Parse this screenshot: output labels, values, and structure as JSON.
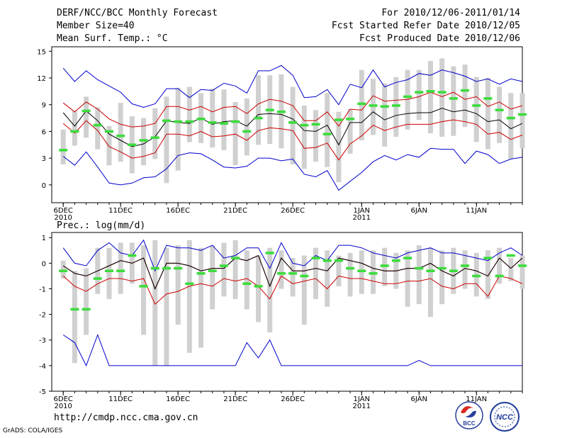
{
  "header": {
    "title": "DERF/NCC/BCC Monthly Forecast",
    "member_size": "Member Size=40",
    "panel1_label": "Mean Surf. Temp.: °C",
    "period": "For 2010/12/06-2011/01/14",
    "started": "Fcst Started Refer Date 2010/12/05",
    "produced": "Fcst Produced Date 2010/12/06"
  },
  "panel2_label": "Prec.: log(mm/d)",
  "footer": {
    "url": "http://cmdp.ncc.cma.gov.cn",
    "credit": "GrADS: COLA/IGES",
    "logo_bcc": "BCC",
    "logo_ncc": "NCC"
  },
  "colors": {
    "max_min": "#0000cc",
    "spread": "#cc0000",
    "mean": "#000000",
    "box": "#d0d0d0",
    "marker": "#3cdc3c"
  },
  "chart_data": [
    {
      "type": "line",
      "title": "Mean Surf. Temp.: °C",
      "x_labels": [
        {
          "day": 1,
          "label": "6DEC",
          "sub": "2010"
        },
        {
          "day": 6,
          "label": "11DEC"
        },
        {
          "day": 11,
          "label": "16DEC"
        },
        {
          "day": 16,
          "label": "21DEC"
        },
        {
          "day": 21,
          "label": "26DEC"
        },
        {
          "day": 27,
          "label": "1JAN",
          "sub": "2011"
        },
        {
          "day": 32,
          "label": "6JAN"
        },
        {
          "day": 37,
          "label": "11JAN"
        }
      ],
      "xlim": [
        0,
        41
      ],
      "ylim": [
        -2,
        15.5
      ],
      "yticks": [
        0,
        3,
        6,
        9,
        12,
        15
      ],
      "ytick_labels": [
        "0",
        "3",
        "6",
        "9",
        "12",
        "15"
      ],
      "series": {
        "max": [
          13.1,
          11.6,
          12.8,
          11.8,
          11.1,
          10.4,
          9.1,
          8.7,
          9.1,
          10.8,
          10.8,
          9.8,
          10.7,
          10.6,
          11.4,
          11.1,
          10.3,
          12.8,
          12.8,
          13.4,
          12.3,
          9.8,
          9.9,
          10.7,
          9.0,
          11.3,
          10.9,
          12.9,
          11.0,
          11.5,
          11.8,
          12.5,
          12.3,
          12.9,
          12.6,
          12.2,
          11.6,
          11.9,
          11.3,
          11.9,
          11.6
        ],
        "spread_upper": [
          9.2,
          8.2,
          9.3,
          8.5,
          7.4,
          6.8,
          6.5,
          6.6,
          6.9,
          8.8,
          8.8,
          8.4,
          8.8,
          8.2,
          8.7,
          8.8,
          8.0,
          9.1,
          9.6,
          9.4,
          8.9,
          7.2,
          7.2,
          8.2,
          6.6,
          8.5,
          8.4,
          10.0,
          9.4,
          9.5,
          9.6,
          9.9,
          10.4,
          9.9,
          10.4,
          9.6,
          9.9,
          8.8,
          9.3,
          8.5,
          8.9
        ],
        "mean": [
          8.1,
          6.6,
          8.3,
          7.2,
          5.7,
          5.0,
          4.3,
          4.6,
          5.4,
          7.2,
          7.0,
          6.9,
          7.5,
          6.8,
          7.1,
          7.2,
          6.6,
          7.9,
          8.0,
          7.9,
          7.4,
          6.1,
          6.0,
          6.7,
          4.5,
          7.0,
          7.0,
          8.2,
          7.3,
          7.8,
          8.0,
          8.1,
          8.1,
          8.6,
          8.2,
          8.4,
          8.0,
          7.1,
          7.3,
          6.3,
          6.9
        ],
        "spread_lower": [
          6.9,
          5.8,
          7.2,
          6.1,
          4.3,
          3.7,
          3.0,
          3.2,
          3.6,
          5.7,
          5.7,
          5.5,
          6.0,
          5.4,
          5.5,
          5.7,
          5.0,
          6.1,
          6.4,
          6.3,
          6.1,
          4.1,
          4.2,
          4.7,
          2.8,
          4.6,
          5.5,
          6.7,
          6.1,
          6.5,
          6.8,
          6.8,
          6.8,
          7.1,
          7.3,
          7.1,
          6.8,
          5.7,
          5.9,
          5.1,
          5.6
        ],
        "min": [
          3.2,
          2.2,
          3.7,
          2.0,
          0.2,
          0.0,
          0.2,
          0.8,
          0.9,
          1.8,
          3.3,
          3.6,
          3.5,
          2.8,
          2.0,
          1.9,
          2.1,
          3.0,
          3.0,
          2.7,
          2.9,
          1.2,
          0.9,
          1.6,
          -0.6,
          0.4,
          1.4,
          2.6,
          3.3,
          2.8,
          3.4,
          3.1,
          4.1,
          4.0,
          4.0,
          2.4,
          3.8,
          3.4,
          2.4,
          2.9,
          3.1
        ],
        "marker": [
          3.9,
          6.0,
          8.3,
          6.7,
          6.0,
          5.5,
          4.5,
          5.0,
          5.3,
          7.2,
          7.1,
          7.1,
          7.4,
          7.0,
          6.9,
          7.1,
          6.0,
          7.5,
          8.4,
          8.2,
          7.0,
          6.7,
          6.8,
          5.7,
          7.3,
          7.4,
          9.1,
          8.9,
          8.8,
          8.9,
          9.9,
          10.4,
          10.5,
          10.4,
          9.7,
          10.6,
          8.9,
          9.7,
          8.4,
          7.5,
          7.9
        ],
        "box_low": [
          2.3,
          4.4,
          5.3,
          4.0,
          2.2,
          2.6,
          1.3,
          2.2,
          2.9,
          0.2,
          1.6,
          4.8,
          4.7,
          4.2,
          3.9,
          2.2,
          3.3,
          4.5,
          4.6,
          4.1,
          2.3,
          1.8,
          2.6,
          2.0,
          0.3,
          3.5,
          5.0,
          5.6,
          4.3,
          5.4,
          6.2,
          7.3,
          5.8,
          5.4,
          5.5,
          6.5,
          4.8,
          4.0,
          4.7,
          2.9,
          4.1
        ],
        "box_high": [
          6.2,
          8.3,
          9.9,
          8.7,
          6.6,
          9.2,
          7.7,
          7.5,
          8.6,
          9.9,
          10.9,
          11.0,
          10.3,
          10.8,
          10.7,
          9.3,
          9.7,
          12.3,
          12.3,
          12.4,
          11.0,
          8.9,
          8.4,
          10.3,
          8.2,
          8.5,
          12.9,
          11.9,
          11.4,
          12.1,
          12.9,
          12.9,
          13.9,
          14.2,
          13.3,
          13.5,
          12.1,
          12.0,
          11.0,
          10.3,
          10.3
        ]
      }
    },
    {
      "type": "line",
      "title": "Prec.: log(mm/d)",
      "x_labels": [
        {
          "day": 1,
          "label": "6DEC",
          "sub": "2010"
        },
        {
          "day": 6,
          "label": "11DEC"
        },
        {
          "day": 11,
          "label": "16DEC"
        },
        {
          "day": 16,
          "label": "21DEC"
        },
        {
          "day": 21,
          "label": "26DEC"
        },
        {
          "day": 27,
          "label": "1JAN",
          "sub": "2011"
        },
        {
          "day": 32,
          "label": "6JAN"
        },
        {
          "day": 37,
          "label": "11JAN"
        }
      ],
      "xlim": [
        0,
        41
      ],
      "ylim": [
        -5,
        1.2
      ],
      "yticks": [
        -5,
        -4,
        -3,
        -2,
        -1,
        0,
        1
      ],
      "ytick_labels": [
        "-5",
        "-4",
        "-3",
        "-2",
        "-1",
        "0",
        "1"
      ],
      "series": {
        "max": [
          0.6,
          0.0,
          -0.1,
          0.5,
          0.8,
          0.4,
          0.3,
          0.9,
          -0.3,
          0.7,
          0.6,
          0.6,
          0.5,
          0.7,
          0.2,
          0.3,
          0.6,
          0.6,
          -0.2,
          0.8,
          0.0,
          -0.1,
          0.3,
          0.1,
          0.7,
          0.7,
          0.6,
          0.4,
          0.3,
          0.2,
          0.4,
          0.5,
          0.6,
          0.4,
          0.4,
          0.3,
          0.2,
          0.1,
          0.4,
          0.6,
          0.3
        ],
        "spread_upper": [
          -0.1,
          -0.4,
          -0.5,
          -0.3,
          -0.1,
          0.1,
          0.0,
          0.2,
          -1.0,
          0.0,
          0.0,
          -0.1,
          -0.3,
          -0.2,
          -0.2,
          0.2,
          0.1,
          0.3,
          -0.9,
          0.2,
          -0.3,
          -0.3,
          -0.2,
          -0.3,
          0.2,
          0.1,
          0.0,
          -0.2,
          -0.3,
          -0.3,
          -0.2,
          -0.2,
          0.0,
          -0.3,
          -0.5,
          -0.2,
          -0.3,
          -0.5,
          0.2,
          -0.2,
          0.2
        ],
        "mean": [
          -0.1,
          -0.4,
          -0.5,
          -0.3,
          -0.1,
          0.1,
          0.0,
          0.2,
          -1.0,
          0.0,
          0.0,
          -0.1,
          -0.3,
          -0.2,
          -0.2,
          0.2,
          0.1,
          0.3,
          -0.9,
          0.2,
          -0.3,
          -0.3,
          -0.2,
          -0.3,
          0.2,
          0.1,
          0.0,
          -0.2,
          -0.3,
          -0.3,
          -0.2,
          -0.2,
          0.0,
          -0.3,
          -0.5,
          -0.2,
          -0.3,
          -0.5,
          0.2,
          -0.2,
          0.2
        ],
        "spread_lower": [
          -0.5,
          -0.9,
          -1.1,
          -0.8,
          -0.6,
          -0.6,
          -0.7,
          -0.6,
          -1.6,
          -1.2,
          -1.1,
          -0.9,
          -0.8,
          -0.9,
          -0.6,
          -0.7,
          -0.6,
          -0.9,
          -1.4,
          -0.5,
          -0.8,
          -0.7,
          -0.6,
          -1.0,
          -0.5,
          -0.6,
          -0.6,
          -0.7,
          -0.8,
          -0.8,
          -0.7,
          -0.7,
          -0.6,
          -0.9,
          -1.0,
          -0.8,
          -0.8,
          -1.3,
          -0.5,
          -0.6,
          -0.8
        ],
        "min": [
          -2.8,
          -3.1,
          -4.0,
          -2.8,
          -4.0,
          -4.0,
          -4.0,
          -4.0,
          -4.0,
          -4.0,
          -4.0,
          -4.0,
          -4.0,
          -4.0,
          -4.0,
          -4.0,
          -3.1,
          -3.7,
          -3.0,
          -4.0,
          -4.0,
          -4.0,
          -4.0,
          -4.0,
          -4.0,
          -4.0,
          -4.0,
          -4.0,
          -4.0,
          -4.0,
          -4.0,
          -3.8,
          -4.0,
          -4.0,
          -4.0,
          -4.0,
          -4.0,
          -4.0,
          -4.0,
          -4.0,
          -4.0
        ],
        "marker": [
          -0.3,
          -1.8,
          -1.8,
          -0.6,
          -0.3,
          -0.3,
          0.3,
          -0.9,
          -0.2,
          -0.2,
          -0.2,
          -0.8,
          -0.4,
          -0.3,
          -0.1,
          0.2,
          -0.8,
          -0.9,
          0.4,
          -0.4,
          -0.4,
          -0.5,
          0.2,
          0.1,
          0.1,
          -0.2,
          -0.3,
          -0.4,
          -0.1,
          0.1,
          0.2,
          -0.2,
          -0.3,
          -0.2,
          -0.3,
          -0.1,
          -0.5,
          0.2,
          -0.5,
          0.3,
          -0.1
        ],
        "box_low": [
          -0.6,
          -3.9,
          -2.8,
          -1.2,
          -1.4,
          -1.2,
          -0.8,
          -2.8,
          -4.0,
          -4.0,
          -2.4,
          -3.5,
          -3.3,
          -1.8,
          -1.3,
          -1.4,
          -1.8,
          -2.3,
          -2.7,
          -1.0,
          -1.3,
          -2.4,
          -1.4,
          -1.7,
          -0.9,
          -1.3,
          -1.2,
          -1.2,
          -0.9,
          -1.0,
          -1.7,
          -1.6,
          -2.1,
          -1.6,
          -1.2,
          -1.0,
          -1.3,
          -1.4,
          -0.8,
          -0.7,
          -1.0
        ],
        "box_high": [
          0.1,
          -0.3,
          -0.2,
          0.6,
          0.6,
          0.8,
          0.8,
          0.7,
          0.9,
          0.6,
          0.7,
          0.9,
          0.6,
          0.7,
          0.8,
          0.9,
          0.5,
          0.3,
          0.6,
          0.5,
          0.2,
          0.3,
          0.6,
          0.5,
          0.3,
          0.4,
          0.5,
          0.5,
          0.6,
          0.4,
          0.5,
          0.7,
          0.6,
          0.5,
          0.6,
          0.5,
          0.4,
          0.5,
          0.6,
          0.2,
          0.3
        ]
      }
    }
  ]
}
